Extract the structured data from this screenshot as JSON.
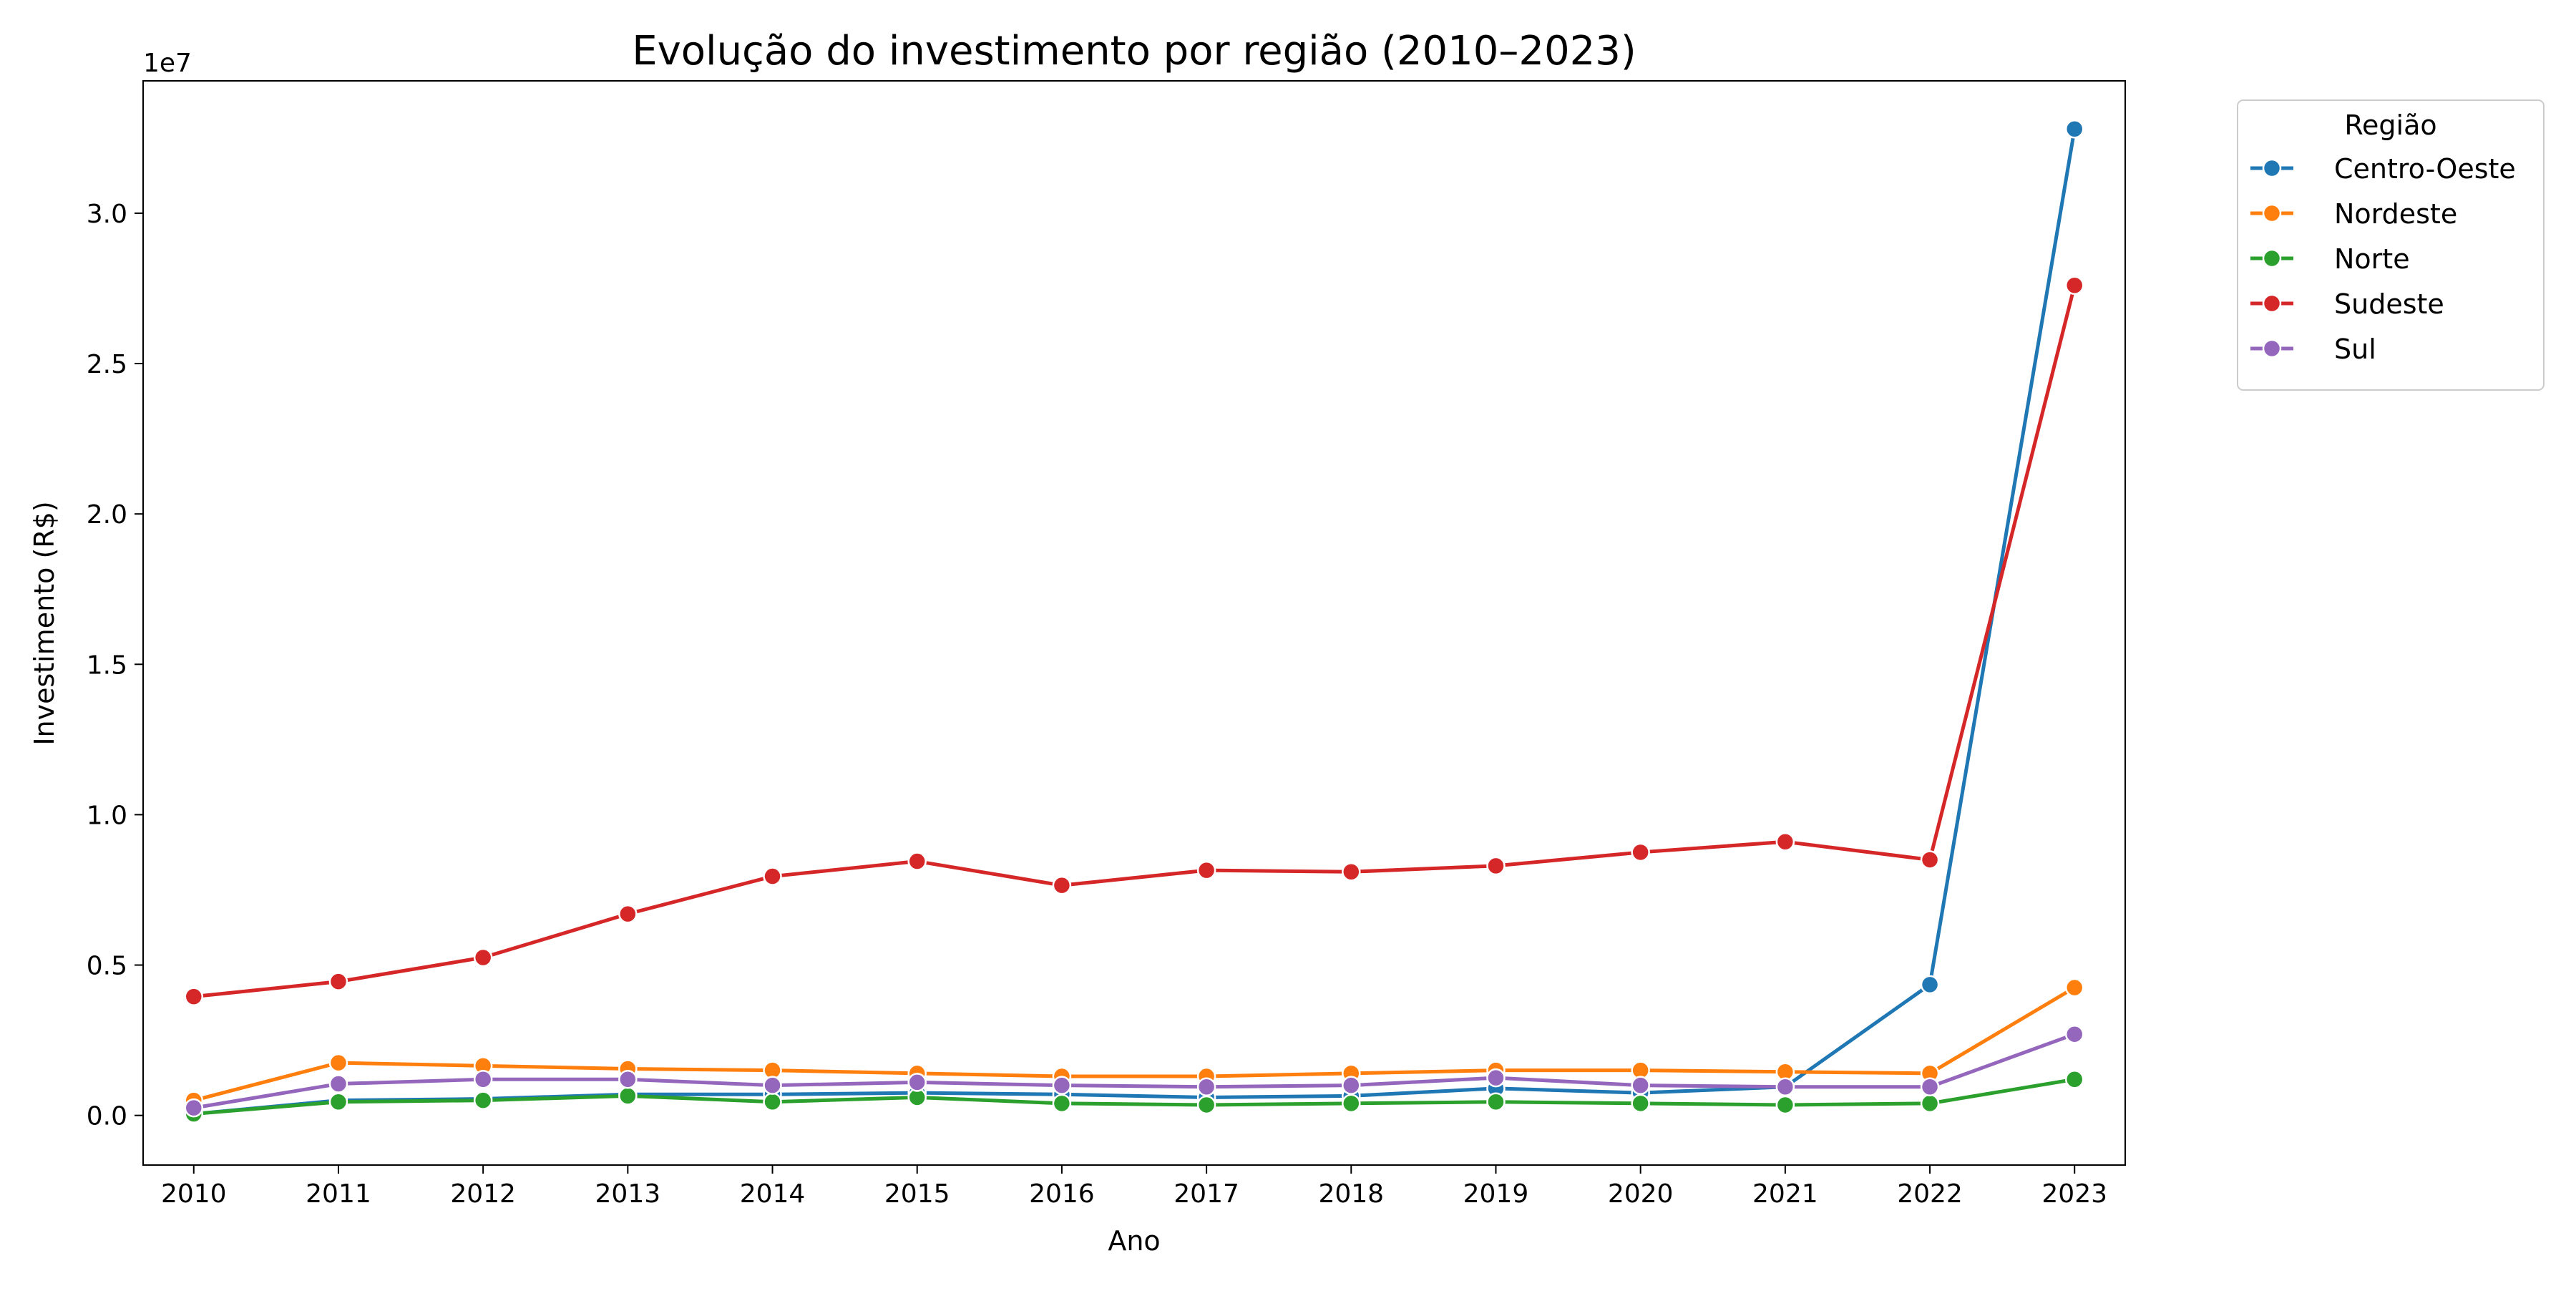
{
  "chart_data": {
    "type": "line",
    "title": "Evolução do investimento por região (2010–2023)",
    "xlabel": "Ano",
    "ylabel": "Investimento (R$)",
    "y_offset_label": "1e7",
    "y_scale_factor": 10000000,
    "x": [
      2010,
      2011,
      2012,
      2013,
      2014,
      2015,
      2016,
      2017,
      2018,
      2019,
      2020,
      2021,
      2022,
      2023
    ],
    "xlim": [
      2009.65,
      2023.35
    ],
    "ylim": [
      -1650000,
      34400000
    ],
    "yticks": [
      0,
      5000000,
      10000000,
      15000000,
      20000000,
      25000000,
      30000000
    ],
    "ytick_labels": [
      "0.0",
      "0.5",
      "1.0",
      "1.5",
      "2.0",
      "2.5",
      "3.0"
    ],
    "grid": false,
    "legend": {
      "title": "Região",
      "placement": "outside-top-right"
    },
    "series": [
      {
        "name": "Centro-Oeste",
        "color": "#1f77b4",
        "values": [
          50000,
          500000,
          550000,
          700000,
          700000,
          750000,
          700000,
          600000,
          650000,
          900000,
          750000,
          950000,
          4350000,
          32800000
        ]
      },
      {
        "name": "Nordeste",
        "color": "#ff7f0e",
        "values": [
          500000,
          1750000,
          1650000,
          1550000,
          1500000,
          1400000,
          1300000,
          1300000,
          1400000,
          1500000,
          1500000,
          1450000,
          1400000,
          4250000
        ]
      },
      {
        "name": "Norte",
        "color": "#2ca02c",
        "values": [
          50000,
          450000,
          500000,
          650000,
          450000,
          600000,
          400000,
          350000,
          400000,
          450000,
          400000,
          350000,
          400000,
          1200000
        ]
      },
      {
        "name": "Sudeste",
        "color": "#d62728",
        "values": [
          3950000,
          4450000,
          5250000,
          6700000,
          7950000,
          8450000,
          7650000,
          8150000,
          8100000,
          8300000,
          8750000,
          9100000,
          8500000,
          27600000
        ]
      },
      {
        "name": "Sul",
        "color": "#9467bd",
        "values": [
          250000,
          1050000,
          1200000,
          1200000,
          1000000,
          1100000,
          1000000,
          950000,
          1000000,
          1250000,
          1000000,
          950000,
          950000,
          2700000
        ]
      }
    ]
  }
}
